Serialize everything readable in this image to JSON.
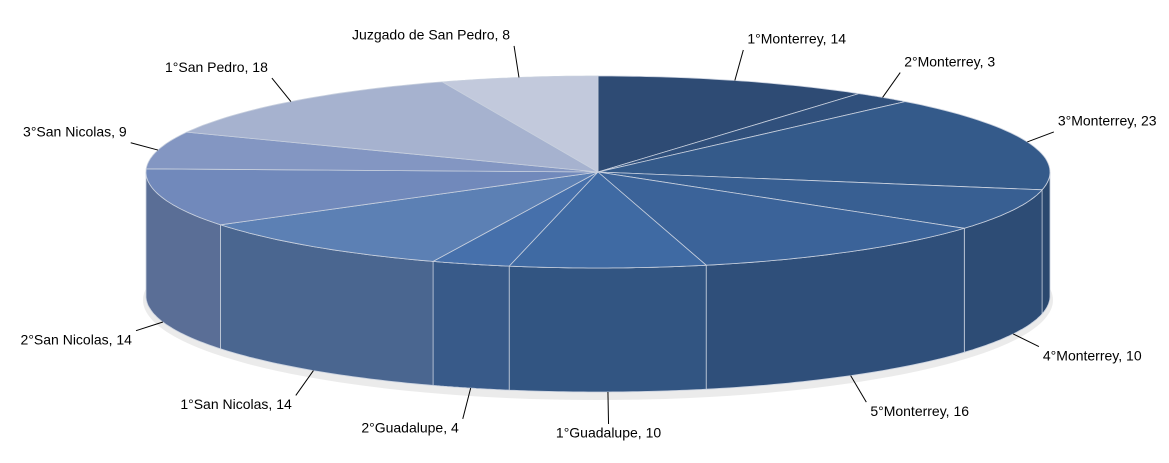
{
  "chart_data": {
    "type": "pie3d",
    "values": [
      14,
      3,
      23,
      10,
      16,
      10,
      4,
      14,
      14,
      9,
      18,
      8
    ],
    "value_labels": [
      "1°Monterrey, 14",
      "2°Monterrey, 3",
      "3°Monterrey, 23",
      "4°Monterrey, 10",
      "5°Monterrey, 16",
      "1°Guadalupe, 10",
      "2°Guadalupe, 4",
      "1°San Nicolas, 14",
      "2°San Nicolas, 14",
      "3°San Nicolas, 9",
      "1°San Pedro, 18",
      "Juzgado de San Pedro, 8"
    ],
    "colors": [
      "#2e4b74",
      "#30507c",
      "#345a8a",
      "#385f92",
      "#3b6399",
      "#3f6aa3",
      "#4670ab",
      "#5c80b4",
      "#7189bb",
      "#8396c2",
      "#a6b2cf",
      "#c2c9dc"
    ]
  }
}
